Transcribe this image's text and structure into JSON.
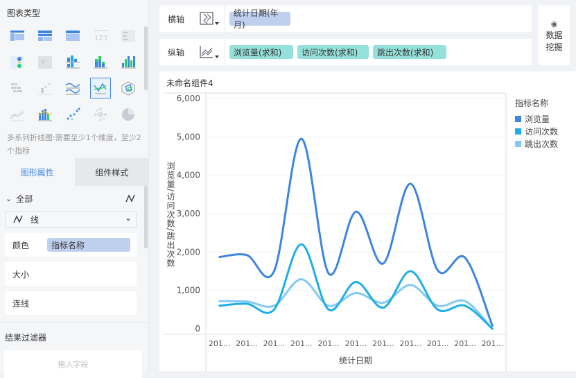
{
  "left_panel": {
    "chart_type_title": "图表类型",
    "chart_types": [
      "cross-table",
      "grouped-table",
      "detail-table",
      "kpi-card",
      "multi-kpi",
      "color-table",
      "heat-map",
      "stacked-bar",
      "grouped-bar",
      "column",
      "bar-h",
      "waterfall",
      "multi-line",
      "multi-series-line",
      "radar",
      "area",
      "combo",
      "scatter",
      "bubble",
      "pie"
    ],
    "selected_type": "multi-series-line",
    "hint": "多系列折线图:需要至少1个维度，至少2个指标",
    "tabs": [
      "图形属性",
      "组件样式"
    ],
    "all_label": "全部",
    "mark_type": "线",
    "color_label": "颜色",
    "color_field": "指标名称",
    "size_label": "大小",
    "connect_label": "连线",
    "filter_title": "结果过滤器",
    "filter_placeholder": "拖入字段"
  },
  "shelf": {
    "x_label": "横轴",
    "x_fields": [
      "统计日期(年月)"
    ],
    "y_label": "纵轴",
    "y_fields": [
      "浏览量(求和)",
      "访问次数(求和)",
      "跳出次数(求和)"
    ],
    "mining_label_1": "数据",
    "mining_label_2": "挖掘"
  },
  "component_title": "未命名组件4",
  "chart_data": {
    "type": "line",
    "smooth": true,
    "categories": [
      "201...",
      "201...",
      "201...",
      "201...",
      "201...",
      "201...",
      "201...",
      "201...",
      "201...",
      "201...",
      "201..."
    ],
    "xlabel": "统计日期",
    "ylabel": "浏览量/访问次数/跳出次数",
    "ylim": [
      0,
      6000
    ],
    "yticks": [
      "0",
      "1,000",
      "2,000",
      "3,000",
      "4,000",
      "5,000",
      "6,000"
    ],
    "legend_title": "指标名称",
    "legend_position": "right",
    "series": [
      {
        "name": "浏览量",
        "color": "#3d85de",
        "values": [
          1870,
          1920,
          1500,
          4950,
          1440,
          3050,
          1700,
          3780,
          1520,
          1850,
          80
        ]
      },
      {
        "name": "访问次数",
        "color": "#1eaee6",
        "values": [
          600,
          650,
          500,
          2200,
          500,
          1220,
          550,
          1500,
          500,
          600,
          0
        ]
      },
      {
        "name": "跳出次数",
        "color": "#84c9f2",
        "values": [
          720,
          710,
          600,
          1290,
          600,
          930,
          680,
          1140,
          600,
          720,
          0
        ]
      }
    ]
  }
}
